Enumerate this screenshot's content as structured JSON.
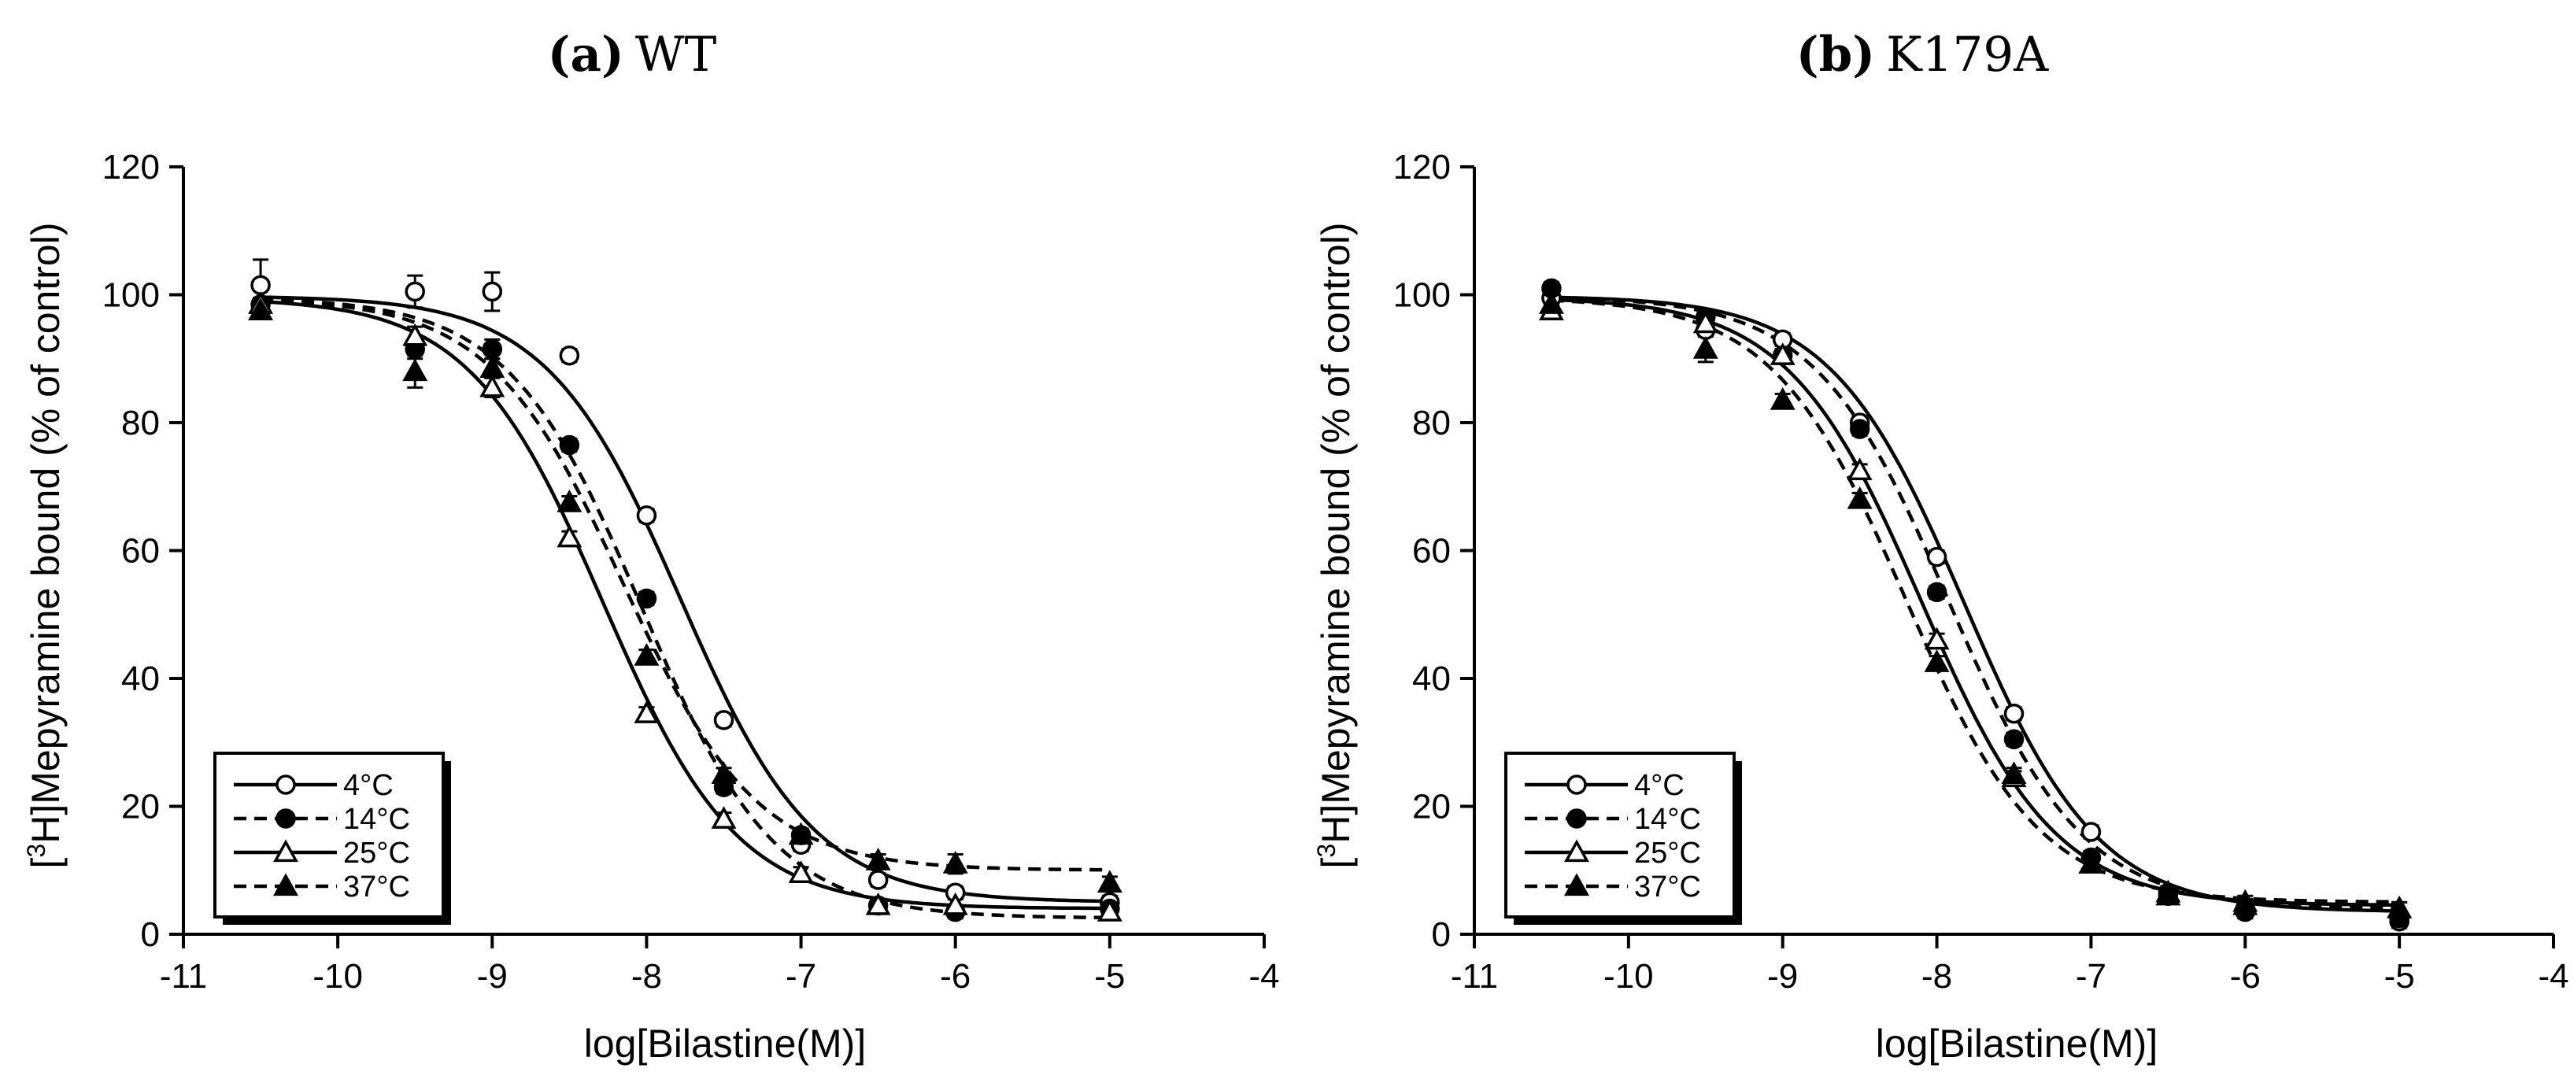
{
  "figure": {
    "legend_entries": [
      {
        "label": "4°C",
        "marker": "open-circle-icon",
        "line": "solid"
      },
      {
        "label": "14°C",
        "marker": "filled-circle-icon",
        "line": "dashed"
      },
      {
        "label": "25°C",
        "marker": "open-triangle-icon",
        "line": "solid"
      },
      {
        "label": "37°C",
        "marker": "filled-triangle-icon",
        "line": "dashed"
      }
    ]
  },
  "chart_data": [
    {
      "type": "scatter",
      "panel_letter": "(a)",
      "panel_name": "WT",
      "xlabel": "log[Bilastine(M)]",
      "ylabel_prefix": "[",
      "ylabel_sup": "3",
      "ylabel_main": "H]Mepyramine bound (% of control)",
      "xlim": [
        -11,
        -4
      ],
      "ylim": [
        0,
        120
      ],
      "xticks": [
        -11,
        -10,
        -9,
        -8,
        -7,
        -6,
        -5,
        -4
      ],
      "xtick_labels": [
        "-11",
        "-10",
        "-9",
        "-8",
        "-7",
        "-6",
        "-5",
        "-4"
      ],
      "yticks": [
        0,
        20,
        40,
        60,
        80,
        100,
        120
      ],
      "ytick_labels": [
        "0",
        "20",
        "40",
        "60",
        "80",
        "100",
        "120"
      ],
      "legend_position": "bottom-left",
      "x": [
        -10.5,
        -9.5,
        -9,
        -8.5,
        -8,
        -7.5,
        -7,
        -6.5,
        -6,
        -5
      ],
      "series": [
        {
          "name": "4°C",
          "marker": "open-circle",
          "line": "solid",
          "values": [
            101.5,
            100.5,
            100.5,
            90.5,
            65.5,
            33.5,
            14,
            8.5,
            6.5,
            5
          ],
          "errors": [
            4,
            2.5,
            3,
            1,
            1,
            1,
            1,
            1,
            1,
            1
          ],
          "fit": {
            "top": 99.8,
            "bottom": 5,
            "log_ic50": -7.78,
            "hill": 1
          }
        },
        {
          "name": "14°C",
          "marker": "filled-circle",
          "line": "dashed",
          "values": [
            98.5,
            91.5,
            91.5,
            76.5,
            52.5,
            23,
            15.5,
            4.5,
            3.5,
            4
          ],
          "errors": [
            1,
            1.5,
            1.5,
            1,
            1,
            1,
            1,
            1,
            1,
            1
          ],
          "fit": {
            "top": 99.6,
            "bottom": 2.5,
            "log_ic50": -8.03,
            "hill": 1
          }
        },
        {
          "name": "25°C",
          "marker": "open-triangle",
          "line": "solid",
          "values": [
            98.5,
            93.5,
            85.5,
            62,
            34.5,
            18,
            9.5,
            4.5,
            4.5,
            3.5
          ],
          "errors": [
            1,
            1.5,
            1.5,
            1,
            1,
            1,
            1,
            1,
            1,
            1
          ],
          "fit": {
            "top": 99.5,
            "bottom": 4,
            "log_ic50": -8.28,
            "hill": 1
          }
        },
        {
          "name": "37°C",
          "marker": "filled-triangle",
          "line": "dashed",
          "values": [
            97.5,
            88,
            88.5,
            67.5,
            43.5,
            25,
            15.5,
            11.5,
            11,
            8
          ],
          "errors": [
            1,
            2.5,
            1.5,
            1,
            1,
            1,
            1,
            1,
            1.5,
            1
          ],
          "fit": {
            "top": 99.5,
            "bottom": 10,
            "log_ic50": -8.15,
            "hill": 1
          }
        }
      ]
    },
    {
      "type": "scatter",
      "panel_letter": "(b)",
      "panel_name": "K179A",
      "xlabel": "log[Bilastine(M)]",
      "ylabel_prefix": "[",
      "ylabel_sup": "3",
      "ylabel_main": "H]Mepyramine bound (% of control)",
      "xlim": [
        -11,
        -4
      ],
      "ylim": [
        0,
        120
      ],
      "xticks": [
        -11,
        -10,
        -9,
        -8,
        -7,
        -6,
        -5,
        -4
      ],
      "xtick_labels": [
        "-11",
        "-10",
        "-9",
        "-8",
        "-7",
        "-6",
        "-5",
        "-4"
      ],
      "yticks": [
        0,
        20,
        40,
        60,
        80,
        100,
        120
      ],
      "ytick_labels": [
        "0",
        "20",
        "40",
        "60",
        "80",
        "100",
        "120"
      ],
      "legend_position": "bottom-left",
      "x": [
        -10.5,
        -9.5,
        -9,
        -8.5,
        -8,
        -7.5,
        -7,
        -6.5,
        -6,
        -5
      ],
      "series": [
        {
          "name": "4°C",
          "marker": "open-circle",
          "line": "solid",
          "values": [
            99.5,
            94.5,
            93,
            80,
            59,
            34.5,
            16,
            6.5,
            4,
            2
          ],
          "errors": [
            1,
            1,
            1,
            1,
            1,
            1,
            1,
            1,
            1,
            1
          ],
          "fit": {
            "top": 99.8,
            "bottom": 3.5,
            "log_ic50": -7.82,
            "hill": 1
          }
        },
        {
          "name": "14°C",
          "marker": "filled-circle",
          "line": "dashed",
          "values": [
            101,
            96.5,
            90.5,
            79,
            53.5,
            30.5,
            12,
            6,
            3.5,
            2.5
          ],
          "errors": [
            1,
            1,
            1,
            1,
            1,
            1,
            1,
            1,
            1,
            1
          ],
          "fit": {
            "top": 99.8,
            "bottom": 4,
            "log_ic50": -7.92,
            "hill": 1
          }
        },
        {
          "name": "25°C",
          "marker": "open-triangle",
          "line": "solid",
          "values": [
            97.5,
            95.5,
            90.5,
            72.5,
            46,
            24.5,
            11,
            6.5,
            5,
            4
          ],
          "errors": [
            1,
            1,
            1,
            1,
            1,
            1,
            1,
            1,
            1,
            1
          ],
          "fit": {
            "top": 99.6,
            "bottom": 4.5,
            "log_ic50": -8.1,
            "hill": 1
          }
        },
        {
          "name": "37°C",
          "marker": "filled-triangle",
          "line": "dashed",
          "values": [
            98.5,
            91.5,
            83.5,
            68,
            42.5,
            25,
            11,
            6,
            4.5,
            4
          ],
          "errors": [
            1,
            2,
            1,
            1,
            1,
            1,
            1,
            1,
            1,
            1
          ],
          "fit": {
            "top": 99.6,
            "bottom": 5,
            "log_ic50": -8.2,
            "hill": 1
          }
        }
      ]
    }
  ]
}
